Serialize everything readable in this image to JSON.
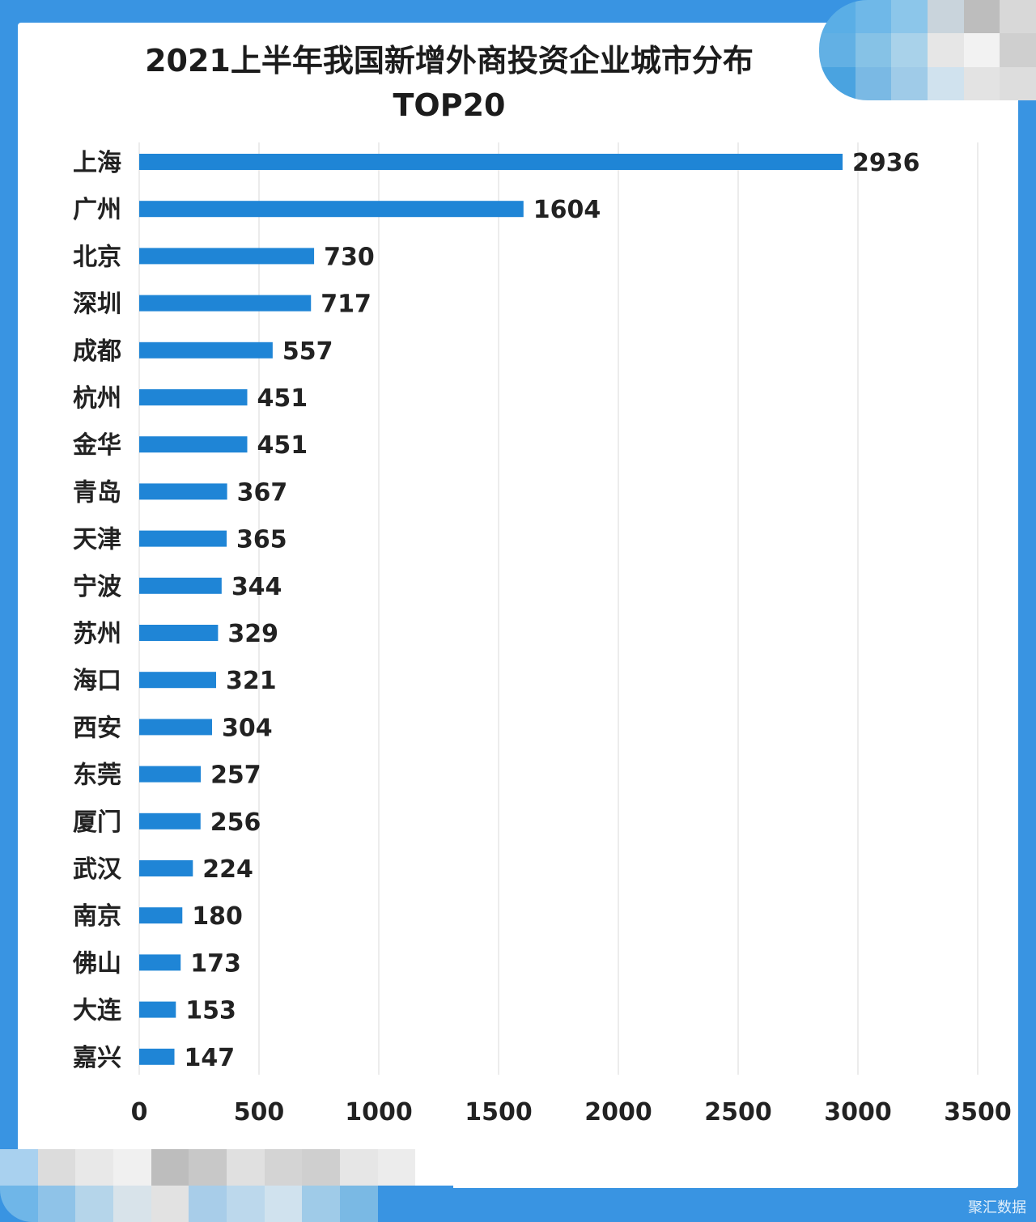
{
  "chart_data": {
    "type": "bar",
    "orientation": "horizontal",
    "title": "2021上半年我国新增外商投资企业城市分布",
    "subtitle": "TOP20",
    "categories": [
      "上海",
      "广州",
      "北京",
      "深圳",
      "成都",
      "杭州",
      "金华",
      "青岛",
      "天津",
      "宁波",
      "苏州",
      "海口",
      "西安",
      "东莞",
      "厦门",
      "武汉",
      "南京",
      "佛山",
      "大连",
      "嘉兴"
    ],
    "values": [
      2936,
      1604,
      730,
      717,
      557,
      451,
      451,
      367,
      365,
      344,
      329,
      321,
      304,
      257,
      256,
      224,
      180,
      173,
      153,
      147
    ],
    "xlim": [
      0,
      3500
    ],
    "xticks": [
      0,
      500,
      1000,
      1500,
      2000,
      2500,
      3000,
      3500
    ],
    "grid": "vertical",
    "bar_color": "#1f85d6",
    "xlabel": "",
    "ylabel": ""
  },
  "watermark": "聚汇数据",
  "colors": {
    "frame": "#3994e2",
    "card": "#ffffff",
    "gridline": "#e6e6e6"
  }
}
